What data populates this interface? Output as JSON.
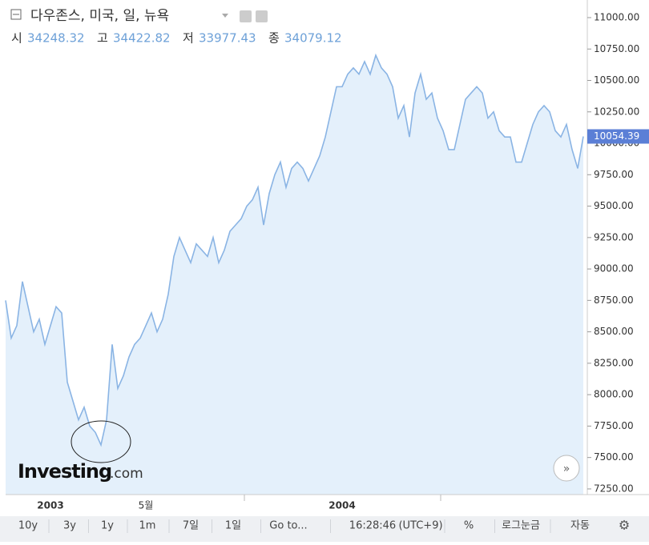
{
  "chart_data": {
    "type": "line",
    "title": "다우존스, 미국, 일, 뉴욕",
    "ohlc": [
      {
        "label": "시",
        "value": "34248.32"
      },
      {
        "label": "고",
        "value": "34422.82"
      },
      {
        "label": "저",
        "value": "33977.43"
      },
      {
        "label": "종",
        "value": "34079.12"
      }
    ],
    "logo": {
      "main": "Investing",
      "suffix": ".com"
    },
    "color": "#8ab4e4",
    "fill": "#e4f0fb",
    "categories": [
      null,
      null,
      null,
      null,
      null,
      null,
      null,
      null,
      "2003",
      null,
      null,
      null,
      null,
      null,
      null,
      null,
      null,
      null,
      null,
      null,
      null,
      null,
      null,
      null,
      null,
      "5월",
      null,
      null,
      null,
      null,
      null,
      null,
      null,
      null,
      null,
      null,
      null,
      null,
      null,
      null,
      null,
      null,
      null,
      null,
      null,
      null,
      null,
      null,
      null,
      null,
      null,
      null,
      null,
      null,
      null,
      null,
      null,
      null,
      null,
      null,
      "2004",
      null,
      null,
      null,
      null,
      null,
      null,
      null,
      null,
      null,
      null,
      null,
      null,
      null,
      null,
      null,
      null,
      null,
      null,
      null,
      null,
      null,
      null,
      null,
      null,
      null,
      null,
      null,
      null,
      null,
      null,
      null,
      null,
      null,
      null,
      null,
      null,
      null,
      null,
      null,
      null,
      null,
      null,
      null
    ],
    "values": [
      8750,
      8450,
      8550,
      8900,
      8700,
      8500,
      8600,
      8400,
      8550,
      8700,
      8650,
      8100,
      7950,
      7800,
      7900,
      7750,
      7700,
      7600,
      7800,
      8400,
      8050,
      8150,
      8300,
      8400,
      8450,
      8550,
      8650,
      8500,
      8600,
      8800,
      9100,
      9250,
      9150,
      9050,
      9200,
      9150,
      9100,
      9250,
      9050,
      9150,
      9300,
      9350,
      9400,
      9500,
      9550,
      9650,
      9350,
      9600,
      9750,
      9850,
      9650,
      9800,
      9850,
      9800,
      9700,
      9800,
      9900,
      10050,
      10250,
      10450,
      10450,
      10550,
      10600,
      10550,
      10650,
      10550,
      10700,
      10600,
      10550,
      10450,
      10200,
      10300,
      10050,
      10400,
      10550,
      10350,
      10400,
      10200,
      10100,
      9950,
      9950,
      10150,
      10350,
      10400,
      10450,
      10400,
      10200,
      10250,
      10100,
      10050,
      10050,
      9850,
      9850,
      10000,
      10150,
      10250,
      10300,
      10250,
      10100,
      10050,
      10150,
      9950,
      9800,
      10054.39
    ],
    "ylim": [
      7205,
      11140
    ],
    "yticks": [
      {
        "value": 7250,
        "label": "7250.00"
      },
      {
        "value": 7500,
        "label": "7500.00"
      },
      {
        "value": 7750,
        "label": "7750.00"
      },
      {
        "value": 8000,
        "label": "8000.00"
      },
      {
        "value": 8250,
        "label": "8250.00"
      },
      {
        "value": 8500,
        "label": "8500.00"
      },
      {
        "value": 8750,
        "label": "8750.00"
      },
      {
        "value": 9000,
        "label": "9000.00"
      },
      {
        "value": 9250,
        "label": "9250.00"
      },
      {
        "value": 9500,
        "label": "9500.00"
      },
      {
        "value": 9750,
        "label": "9750.00"
      },
      {
        "value": 10000,
        "label": "10000.00"
      },
      {
        "value": 10250,
        "label": "10250.00"
      },
      {
        "value": 10500,
        "label": "10500.00"
      },
      {
        "value": 10750,
        "label": "10750.00"
      },
      {
        "value": 11000,
        "label": "11000.00"
      }
    ],
    "toolbar": [
      "10y",
      "3y",
      "1y",
      "1m",
      "7일",
      "1일",
      "Go to...",
      "16:28:46",
      "(UTC+9)",
      "%",
      "로그눈금",
      "자동"
    ]
  }
}
